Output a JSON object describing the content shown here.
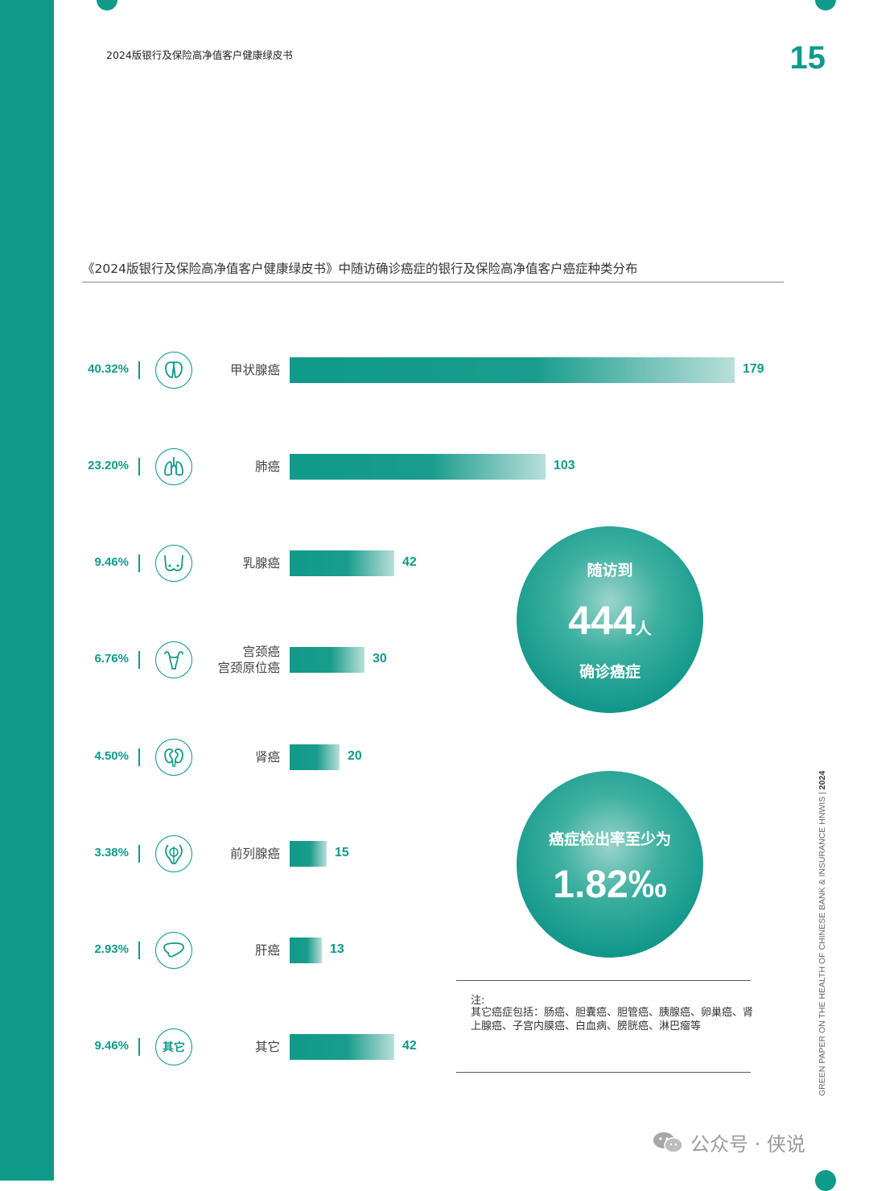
{
  "header": {
    "title": "2024版银行及保险高净值客户健康绿皮书",
    "page_number": "15"
  },
  "chart_data": {
    "type": "bar",
    "title": "《2024版银行及保险高净值客户健康绿皮书》中随访确诊癌症的银行及保险高净值客户癌症种类分布",
    "categories": [
      "甲状腺癌",
      "肺癌",
      "乳腺癌",
      "宫颈癌 宫颈原位癌",
      "肾癌",
      "前列腺癌",
      "肝癌",
      "其它"
    ],
    "values": [
      179,
      103,
      42,
      30,
      20,
      15,
      13,
      42
    ],
    "percentages": [
      "40.32%",
      "23.20%",
      "9.46%",
      "6.76%",
      "4.50%",
      "3.38%",
      "2.93%",
      "9.46%"
    ],
    "rows": [
      {
        "pct": "40.32%",
        "label": [
          "甲状腺癌"
        ],
        "value": 179,
        "icon": "thyroid-icon"
      },
      {
        "pct": "23.20%",
        "label": [
          "肺癌"
        ],
        "value": 103,
        "icon": "lungs-icon"
      },
      {
        "pct": "9.46%",
        "label": [
          "乳腺癌"
        ],
        "value": 42,
        "icon": "breast-icon"
      },
      {
        "pct": "6.76%",
        "label": [
          "宫颈癌",
          "宫颈原位癌"
        ],
        "value": 30,
        "icon": "uterus-icon"
      },
      {
        "pct": "4.50%",
        "label": [
          "肾癌"
        ],
        "value": 20,
        "icon": "kidneys-icon"
      },
      {
        "pct": "3.38%",
        "label": [
          "前列腺癌"
        ],
        "value": 15,
        "icon": "prostate-icon"
      },
      {
        "pct": "2.93%",
        "label": [
          "肝癌"
        ],
        "value": 13,
        "icon": "liver-icon"
      },
      {
        "pct": "9.46%",
        "label": [
          "其它"
        ],
        "value": 42,
        "icon": "other-icon",
        "icon_text": "其它"
      }
    ],
    "xlim": [
      0,
      179
    ],
    "legend": "none",
    "grid": false
  },
  "highlight_circles": {
    "followup": {
      "top": "随访到",
      "number": "444",
      "unit": "人",
      "bottom": "确诊癌症"
    },
    "rate": {
      "top": "癌症检出率至少为",
      "number": "1.82‰"
    }
  },
  "note": {
    "head": "注:",
    "body": "其它癌症包括：肠癌、胆囊癌、胆管癌、胰腺癌、卵巢癌、肾上腺癌、子宫内膜癌、白血病、膀胱癌、淋巴瘤等"
  },
  "side_text": {
    "english": "GREEN PAPER ON THE HEALTH OF CHINESE BANK & INSURANCE HNWIS | ",
    "year": "2024"
  },
  "watermark": {
    "text": "公众号 · 侠说"
  },
  "colors": {
    "accent": "#0f9a8a",
    "bar_end": "#b9dfd9"
  }
}
